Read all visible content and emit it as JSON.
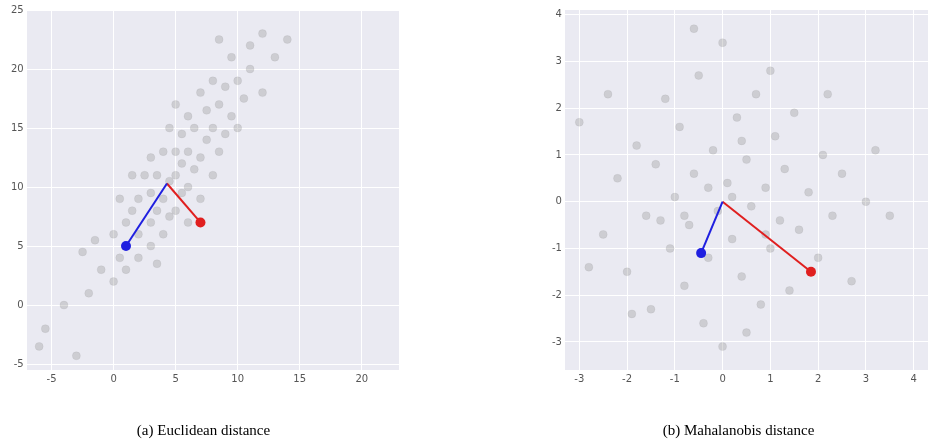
{
  "chart_data": [
    {
      "type": "scatter",
      "title": "(a) Euclidean distance",
      "grid": true,
      "xlim": [
        -7,
        23
      ],
      "xticks": [
        -5,
        0,
        5,
        10,
        15,
        20
      ],
      "ylim": [
        -5.5,
        25
      ],
      "yticks": [
        -5,
        0,
        5,
        10,
        15,
        20,
        25
      ],
      "series": [
        {
          "type": "scatter",
          "color": "#808080",
          "marker": "circle",
          "x": [
            -6,
            -5.5,
            -3,
            -4,
            -2,
            -1,
            -1.5,
            0,
            0,
            0.5,
            1,
            1,
            1.5,
            2,
            2,
            2,
            2.5,
            3,
            3,
            3,
            3,
            3.5,
            3.5,
            4,
            4,
            4,
            4.5,
            4.5,
            4.5,
            5,
            5,
            5,
            5,
            5.5,
            5.5,
            5.5,
            6,
            6,
            6,
            6,
            6.5,
            6.5,
            7,
            7,
            7,
            7.5,
            7.5,
            8,
            8,
            8,
            8.5,
            8.5,
            9,
            9,
            9.5,
            9.5,
            10,
            10,
            10.5,
            11,
            11,
            12,
            12,
            13,
            14,
            -2.5,
            1.5,
            8.5,
            0.5,
            3.5
          ],
          "values": [
            -3.5,
            -2,
            -4.3,
            0,
            1,
            3,
            5.5,
            2,
            6,
            4,
            3,
            7,
            8,
            4,
            6,
            9,
            11,
            5,
            7,
            9.5,
            12.5,
            8,
            11,
            6,
            9,
            13,
            7.5,
            10.5,
            15,
            8,
            11,
            13,
            17,
            9.5,
            12,
            14.5,
            7,
            10,
            13,
            16,
            11.5,
            15,
            9,
            12.5,
            18,
            14,
            16.5,
            11,
            15,
            19,
            13,
            17,
            14.5,
            18.5,
            16,
            21,
            15,
            19,
            17.5,
            20,
            22,
            18,
            23,
            21,
            22.5,
            4.5,
            11,
            22.5,
            9,
            3.5
          ]
        },
        {
          "type": "line",
          "color": "#1f1fe0",
          "marker": "circle",
          "x": [
            4.3,
            1
          ],
          "values": [
            10.3,
            5
          ]
        },
        {
          "type": "line",
          "color": "#e01f1f",
          "marker": "circle",
          "x": [
            4.3,
            7
          ],
          "values": [
            10.3,
            7
          ]
        }
      ]
    },
    {
      "type": "scatter",
      "title": "(b) Mahalanobis distance",
      "grid": true,
      "xlim": [
        -3.3,
        4.3
      ],
      "xticks": [
        -3,
        -2,
        -1,
        0,
        1,
        2,
        3,
        4
      ],
      "ylim": [
        -3.6,
        4.1
      ],
      "yticks": [
        -3,
        -2,
        -1,
        0,
        1,
        2,
        3,
        4
      ],
      "series": [
        {
          "type": "scatter",
          "color": "#808080",
          "marker": "circle",
          "x": [
            -3,
            -2.5,
            -2.2,
            -2,
            -1.8,
            -1.6,
            -1.5,
            -1.4,
            -1.2,
            -1.1,
            -1,
            -0.9,
            -0.8,
            -0.7,
            -0.6,
            -0.5,
            -0.4,
            -0.3,
            -0.2,
            -0.1,
            0,
            0,
            0.1,
            0.2,
            0.3,
            0.4,
            0.5,
            0.6,
            0.7,
            0.8,
            0.9,
            1,
            1.1,
            1.2,
            1.3,
            1.4,
            1.5,
            1.6,
            1.8,
            2,
            2.1,
            2.3,
            2.5,
            2.7,
            3,
            3.2,
            3.5,
            -2.8,
            -1.9,
            0.5,
            -0.6,
            1,
            2.2,
            -2.4,
            0.2,
            -0.3,
            0.4,
            -0.8,
            0.9,
            -1.3
          ],
          "values": [
            1.7,
            -0.7,
            0.5,
            -1.5,
            1.2,
            -0.3,
            -2.3,
            0.8,
            2.2,
            -1,
            0.1,
            1.6,
            -1.8,
            -0.5,
            0.6,
            2.7,
            -2.6,
            -1.2,
            1.1,
            -0.2,
            3.4,
            -3.1,
            0.4,
            -0.8,
            1.8,
            -1.6,
            0.9,
            -0.1,
            2.3,
            -2.2,
            0.3,
            -1,
            1.4,
            -0.4,
            0.7,
            -1.9,
            1.9,
            -0.6,
            0.2,
            -1.2,
            1,
            -0.3,
            0.6,
            -1.7,
            0,
            1.1,
            -0.3,
            -1.4,
            -2.4,
            -2.8,
            3.7,
            2.8,
            2.3,
            2.3,
            0.1,
            0.3,
            1.3,
            -0.3,
            -0.7,
            -0.4
          ]
        },
        {
          "type": "line",
          "color": "#1f1fe0",
          "marker": "circle",
          "x": [
            0,
            -0.45
          ],
          "values": [
            0,
            -1.1
          ]
        },
        {
          "type": "line",
          "color": "#e01f1f",
          "marker": "circle",
          "x": [
            0,
            1.85
          ],
          "values": [
            0,
            -1.5
          ]
        }
      ]
    }
  ]
}
